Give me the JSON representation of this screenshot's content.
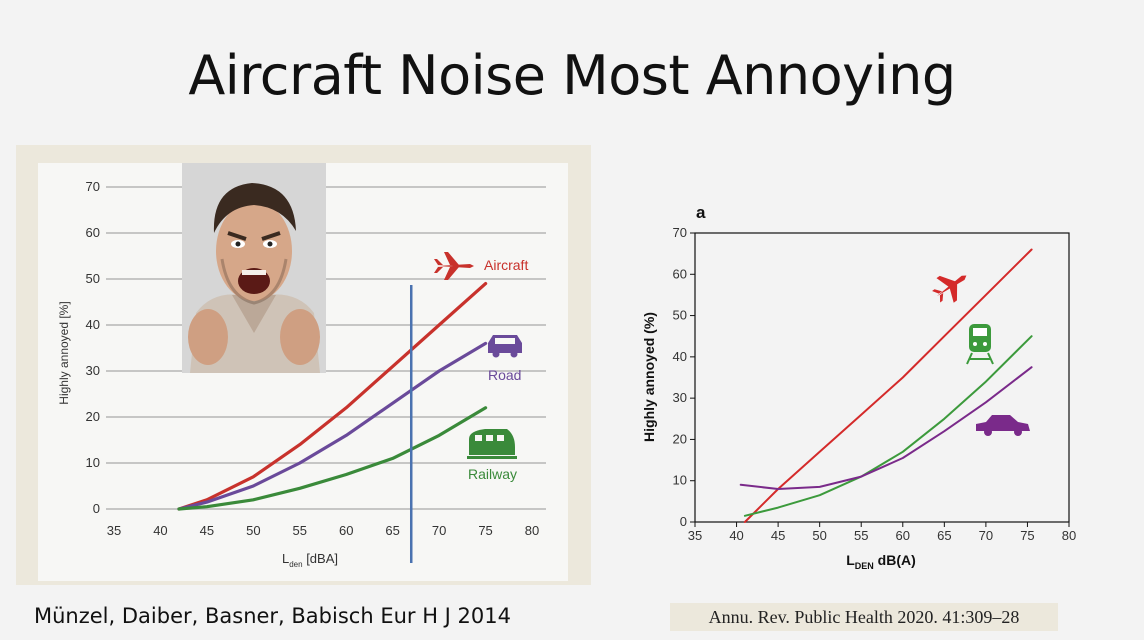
{
  "slide": {
    "title": "Aircraft Noise Most Annoying",
    "credit_left": "Münzel, Daiber, Basner, Babisch Eur H J 2014",
    "credit_right": "Annu. Rev. Public Health 2020. 41:309–28"
  },
  "chart_data": [
    {
      "type": "line",
      "title": "",
      "ylabel": "Highly annoyed [%]",
      "xlabel_main": "L",
      "xlabel_sub": "den",
      "xlabel_unit": " [dBA]",
      "xlim": [
        35,
        80
      ],
      "ylim": [
        0,
        70
      ],
      "xticks": [
        "35",
        "40",
        "45",
        "50",
        "55",
        "60",
        "65",
        "70",
        "75",
        "80"
      ],
      "yticks": [
        "0",
        "10",
        "20",
        "30",
        "40",
        "50",
        "60",
        "70"
      ],
      "grid": "horizontal",
      "vertical_marker_x": 67,
      "vertical_marker_color": "#4a72b0",
      "series": [
        {
          "name": "Aircraft",
          "color": "#c8322c",
          "x": [
            42,
            45,
            50,
            55,
            60,
            65,
            70,
            75
          ],
          "y": [
            0,
            2,
            7,
            14,
            22,
            31,
            40,
            49
          ]
        },
        {
          "name": "Road",
          "color": "#6a4a9a",
          "x": [
            42,
            45,
            50,
            55,
            60,
            65,
            70,
            75
          ],
          "y": [
            0,
            1.5,
            5,
            10,
            16,
            23,
            30,
            36
          ]
        },
        {
          "name": "Railway",
          "color": "#3a8a3a",
          "x": [
            42,
            45,
            50,
            55,
            60,
            65,
            70,
            75
          ],
          "y": [
            0,
            0.5,
            2,
            4.5,
            7.5,
            11,
            16,
            22
          ]
        }
      ],
      "icons": [
        {
          "name": "airplane-icon",
          "color": "#c8322c"
        },
        {
          "name": "car-icon",
          "color": "#6a4a9a"
        },
        {
          "name": "train-icon",
          "color": "#3a8a3a"
        }
      ]
    },
    {
      "type": "line",
      "panel_label": "a",
      "ylabel": "Highly annoyed (%)",
      "xlabel_main": "L",
      "xlabel_sub": "DEN",
      "xlabel_unit": " dB(A)",
      "xlim": [
        35,
        80
      ],
      "ylim": [
        0,
        70
      ],
      "xticks": [
        "35",
        "40",
        "45",
        "50",
        "55",
        "60",
        "65",
        "70",
        "75",
        "80"
      ],
      "yticks": [
        "0",
        "10",
        "20",
        "30",
        "40",
        "50",
        "60",
        "70"
      ],
      "grid": "none",
      "series": [
        {
          "color": "#d42a2a",
          "x": [
            41,
            45,
            50,
            55,
            60,
            65,
            70,
            75.5
          ],
          "y": [
            0,
            8,
            17,
            26,
            35,
            45,
            55,
            66
          ]
        },
        {
          "color": "#3c9a3c",
          "x": [
            41,
            45,
            50,
            55,
            60,
            65,
            70,
            75.5
          ],
          "y": [
            1.5,
            3.5,
            6.5,
            11,
            17,
            25,
            34,
            45
          ]
        },
        {
          "color": "#7a2a8a",
          "x": [
            40.5,
            45,
            50,
            55,
            60,
            65,
            70,
            75.5
          ],
          "y": [
            9,
            8,
            8.5,
            11,
            15.5,
            22,
            29,
            37.5
          ]
        }
      ],
      "icons": [
        {
          "name": "airplane-icon",
          "color": "#d42a2a"
        },
        {
          "name": "train-icon",
          "color": "#3c9a3c"
        },
        {
          "name": "car-icon",
          "color": "#7a2a8a"
        }
      ]
    }
  ]
}
